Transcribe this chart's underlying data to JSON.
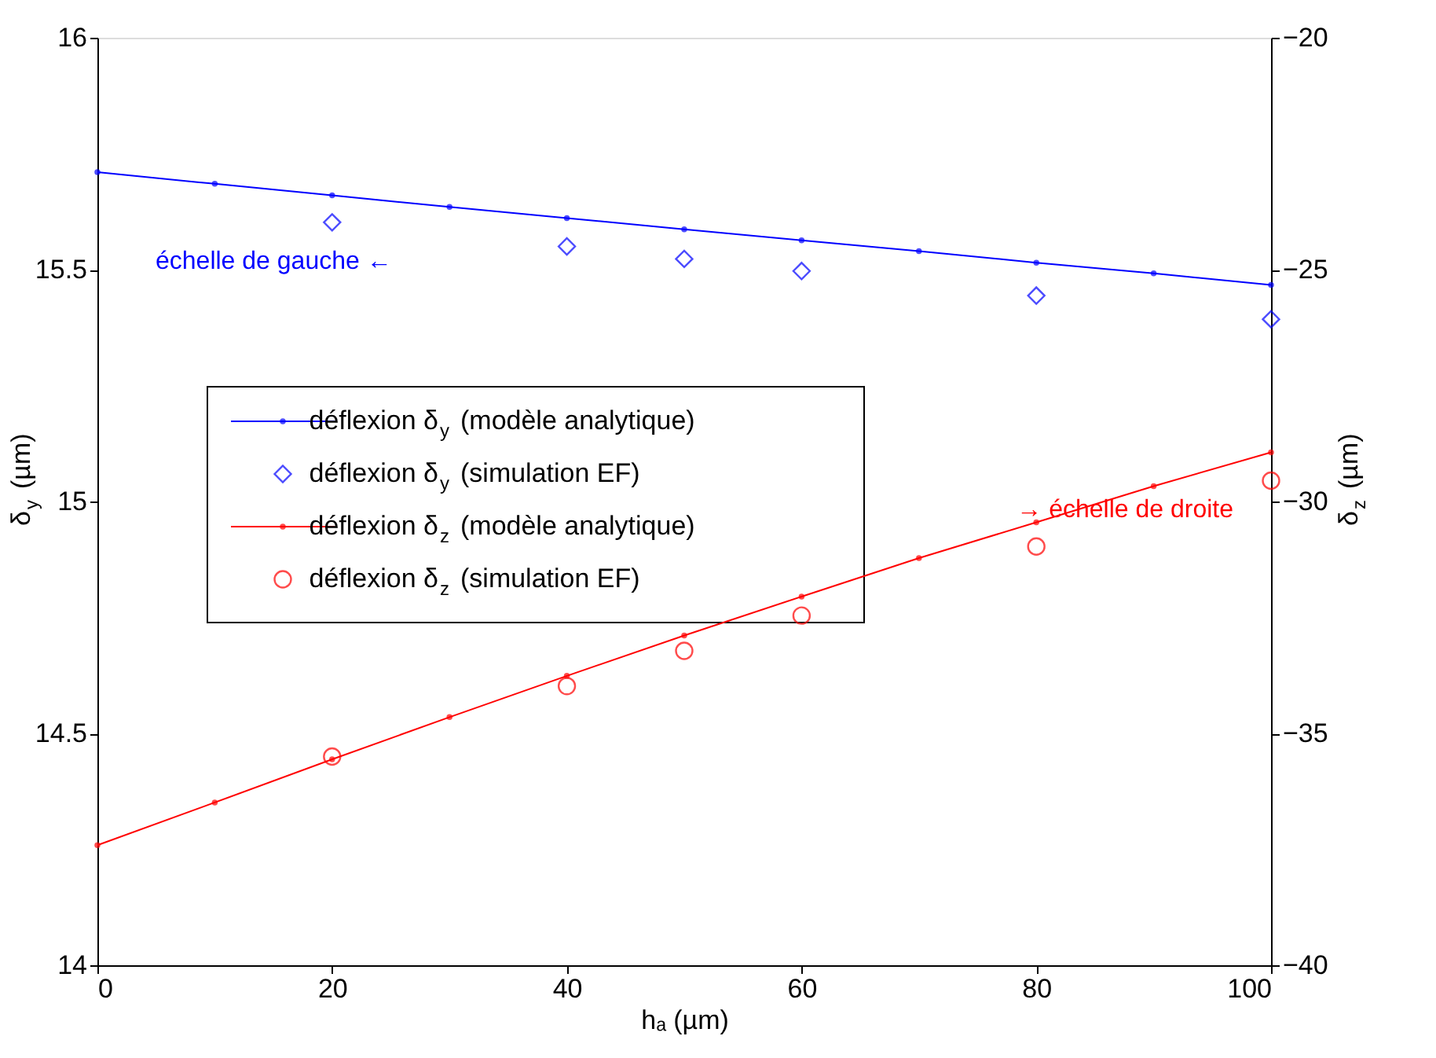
{
  "chart_data": {
    "type": "line",
    "xlabel": "hₐ (µm)",
    "ylabel": "δ$_{y}$ (µm)",
    "y2label": "δ$_{z}$ (µm)",
    "xlim": [
      0,
      100
    ],
    "xticks": [
      0,
      20,
      40,
      60,
      80,
      100
    ],
    "ylim": [
      14,
      16
    ],
    "yticks": [
      14,
      14.5,
      15,
      15.5,
      16
    ],
    "y2lim": [
      -40,
      -20
    ],
    "y2ticks": [
      -40,
      -35,
      -30,
      -25,
      -20
    ],
    "grid": false,
    "legend": "left",
    "annotations": [
      "échelle de gauche ←",
      "→ échelle de droite"
    ],
    "series": [
      {
        "name": "déflexion δ$_{y}$ (modèle analytique)",
        "marker": "circle",
        "color": "#0000ff",
        "x": [
          0,
          10,
          20,
          30,
          40,
          50,
          60,
          70,
          80,
          90,
          100
        ],
        "values": [
          15.71,
          15.685,
          15.66,
          15.635,
          15.611,
          15.587,
          15.563,
          15.54,
          15.515,
          15.492,
          15.467
        ]
      },
      {
        "name": "déflexion δ$_{y}$ (simulation EF)",
        "type": "scatter",
        "marker": "diamond",
        "color": "#0000ff",
        "x": [
          20,
          40,
          50,
          60,
          80,
          100
        ],
        "values": [
          15.602,
          15.55,
          15.523,
          15.497,
          15.444,
          15.393
        ]
      },
      {
        "name": "déflexion δ$_{z}$ (modèle analytique)",
        "marker": "circle",
        "color": "#ff0000",
        "axis": "y2",
        "x": [
          0,
          10,
          20,
          30,
          40,
          50,
          60,
          70,
          80,
          90,
          100
        ],
        "values": [
          -37.41,
          -36.49,
          -35.56,
          -34.65,
          -33.76,
          -32.89,
          -32.05,
          -31.22,
          -30.45,
          -29.67,
          -28.94
        ]
      },
      {
        "name": "déflexion δ$_{z}$ (simulation EF)",
        "type": "scatter",
        "marker": "circle",
        "color": "#ff0000",
        "axis": "y2",
        "x": [
          20,
          40,
          50,
          60,
          80,
          100
        ],
        "values": [
          -35.5,
          -33.98,
          -33.22,
          -32.46,
          -30.97,
          -29.55
        ]
      }
    ]
  }
}
